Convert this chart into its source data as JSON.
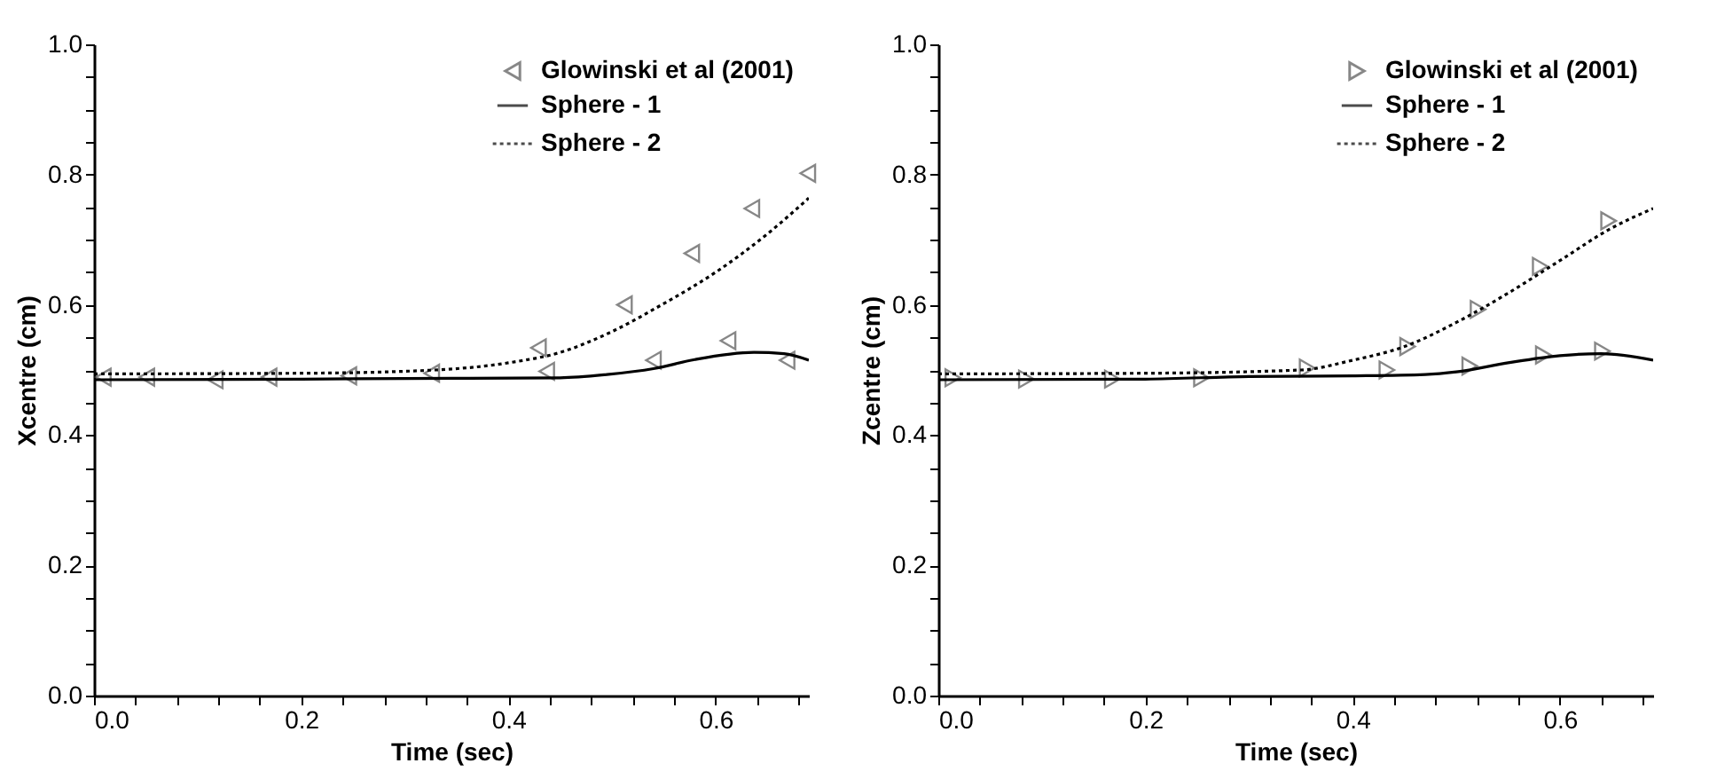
{
  "chart_data": [
    {
      "type": "line",
      "xlabel": "Time (sec)",
      "ylabel": "Xcentre (cm)",
      "xlim": [
        0,
        0.69
      ],
      "ylim": [
        0,
        1
      ],
      "xticks": [
        {
          "value": 0,
          "label": "0.0"
        },
        {
          "value": 0.04,
          "label": null
        },
        {
          "value": 0.08,
          "label": null
        },
        {
          "value": 0.12,
          "label": null
        },
        {
          "value": 0.16,
          "label": null
        },
        {
          "value": 0.2,
          "label": "0.2"
        },
        {
          "value": 0.24,
          "label": null
        },
        {
          "value": 0.28,
          "label": null
        },
        {
          "value": 0.32,
          "label": null
        },
        {
          "value": 0.36,
          "label": null
        },
        {
          "value": 0.4,
          "label": "0.4"
        },
        {
          "value": 0.44,
          "label": null
        },
        {
          "value": 0.48,
          "label": null
        },
        {
          "value": 0.52,
          "label": null
        },
        {
          "value": 0.56,
          "label": null
        },
        {
          "value": 0.6,
          "label": "0.6"
        },
        {
          "value": 0.64,
          "label": null
        },
        {
          "value": 0.68,
          "label": null
        }
      ],
      "yticks": [
        {
          "value": 0,
          "label": "0.0"
        },
        {
          "value": 0.05,
          "label": null
        },
        {
          "value": 0.1,
          "label": null
        },
        {
          "value": 0.15,
          "label": null
        },
        {
          "value": 0.2,
          "label": "0.2"
        },
        {
          "value": 0.25,
          "label": null
        },
        {
          "value": 0.3,
          "label": null
        },
        {
          "value": 0.35,
          "label": null
        },
        {
          "value": 0.4,
          "label": "0.4"
        },
        {
          "value": 0.45,
          "label": null
        },
        {
          "value": 0.5,
          "label": null
        },
        {
          "value": 0.55,
          "label": null
        },
        {
          "value": 0.6,
          "label": "0.6"
        },
        {
          "value": 0.65,
          "label": null
        },
        {
          "value": 0.7,
          "label": null
        },
        {
          "value": 0.75,
          "label": null
        },
        {
          "value": 0.8,
          "label": "0.8"
        },
        {
          "value": 0.85,
          "label": null
        },
        {
          "value": 0.9,
          "label": null
        },
        {
          "value": 0.95,
          "label": null
        },
        {
          "value": 1.0,
          "label": "1.0"
        }
      ],
      "grid": false,
      "legend": "top right",
      "series": [
        {
          "name": "Glowinski et al (2001)",
          "type": "scatter",
          "marker": "triangle-left",
          "color": "#555555",
          "x": [
            0.009,
            0.051,
            0.117,
            0.169,
            0.246,
            0.326,
            0.437,
            0.54,
            0.612,
            0.669,
            0.429,
            0.512,
            0.577,
            0.635,
            0.689
          ],
          "values": [
            0.489,
            0.489,
            0.485,
            0.489,
            0.491,
            0.495,
            0.498,
            0.515,
            0.545,
            0.515,
            0.534,
            0.6,
            0.679,
            0.748,
            0.802
          ]
        },
        {
          "name": "Sphere - 1",
          "line_style": "solid",
          "color": "#000000",
          "x": [
            0,
            0.2,
            0.3,
            0.45,
            0.495,
            0.54,
            0.58,
            0.637,
            0.666,
            0.69
          ],
          "values": [
            0.485,
            0.486,
            0.487,
            0.488,
            0.493,
            0.502,
            0.516,
            0.527,
            0.525,
            0.515
          ]
        },
        {
          "name": "Sphere - 2",
          "line_style": "dotted",
          "color": "#000000",
          "x": [
            0,
            0.2,
            0.3,
            0.4,
            0.45,
            0.5,
            0.55,
            0.6,
            0.65,
            0.69
          ],
          "values": [
            0.494,
            0.495,
            0.498,
            0.511,
            0.527,
            0.559,
            0.602,
            0.65,
            0.709,
            0.764
          ]
        }
      ]
    },
    {
      "type": "line",
      "xlabel": "Time (sec)",
      "ylabel": "Zcentre (cm)",
      "xlim": [
        0,
        0.69
      ],
      "ylim": [
        0,
        1
      ],
      "xticks": [
        {
          "value": 0,
          "label": "0.0"
        },
        {
          "value": 0.04,
          "label": null
        },
        {
          "value": 0.08,
          "label": null
        },
        {
          "value": 0.12,
          "label": null
        },
        {
          "value": 0.16,
          "label": null
        },
        {
          "value": 0.2,
          "label": "0.2"
        },
        {
          "value": 0.24,
          "label": null
        },
        {
          "value": 0.28,
          "label": null
        },
        {
          "value": 0.32,
          "label": null
        },
        {
          "value": 0.36,
          "label": null
        },
        {
          "value": 0.4,
          "label": "0.4"
        },
        {
          "value": 0.44,
          "label": null
        },
        {
          "value": 0.48,
          "label": null
        },
        {
          "value": 0.52,
          "label": null
        },
        {
          "value": 0.56,
          "label": null
        },
        {
          "value": 0.6,
          "label": "0.6"
        },
        {
          "value": 0.64,
          "label": null
        },
        {
          "value": 0.68,
          "label": null
        }
      ],
      "yticks": [
        {
          "value": 0,
          "label": "0.0"
        },
        {
          "value": 0.05,
          "label": null
        },
        {
          "value": 0.1,
          "label": null
        },
        {
          "value": 0.15,
          "label": null
        },
        {
          "value": 0.2,
          "label": "0.2"
        },
        {
          "value": 0.25,
          "label": null
        },
        {
          "value": 0.3,
          "label": null
        },
        {
          "value": 0.35,
          "label": null
        },
        {
          "value": 0.4,
          "label": "0.4"
        },
        {
          "value": 0.45,
          "label": null
        },
        {
          "value": 0.5,
          "label": null
        },
        {
          "value": 0.55,
          "label": null
        },
        {
          "value": 0.6,
          "label": "0.6"
        },
        {
          "value": 0.65,
          "label": null
        },
        {
          "value": 0.7,
          "label": null
        },
        {
          "value": 0.75,
          "label": null
        },
        {
          "value": 0.8,
          "label": "0.8"
        },
        {
          "value": 0.85,
          "label": null
        },
        {
          "value": 0.9,
          "label": null
        },
        {
          "value": 0.95,
          "label": null
        },
        {
          "value": 1.0,
          "label": "1.0"
        }
      ],
      "grid": false,
      "legend": "top right",
      "series": [
        {
          "name": "Glowinski et al (2001)",
          "type": "scatter",
          "marker": "triangle-right",
          "color": "#555555",
          "x": [
            0.014,
            0.085,
            0.168,
            0.254,
            0.433,
            0.513,
            0.584,
            0.641,
            0.356,
            0.453,
            0.521,
            0.581,
            0.647
          ],
          "values": [
            0.488,
            0.486,
            0.486,
            0.488,
            0.5,
            0.506,
            0.523,
            0.529,
            0.503,
            0.536,
            0.593,
            0.659,
            0.729
          ]
        },
        {
          "name": "Sphere - 1",
          "line_style": "solid",
          "color": "#000000",
          "x": [
            0,
            0.2,
            0.3,
            0.4,
            0.47,
            0.5,
            0.55,
            0.6,
            0.64,
            0.69
          ],
          "values": [
            0.485,
            0.486,
            0.49,
            0.491,
            0.493,
            0.497,
            0.511,
            0.522,
            0.525,
            0.515
          ]
        },
        {
          "name": "Sphere - 2",
          "line_style": "dotted",
          "color": "#000000",
          "x": [
            0,
            0.2,
            0.35,
            0.4,
            0.45,
            0.5,
            0.55,
            0.6,
            0.65,
            0.69
          ],
          "values": [
            0.494,
            0.495,
            0.5,
            0.515,
            0.536,
            0.573,
            0.618,
            0.668,
            0.718,
            0.748
          ]
        }
      ]
    }
  ]
}
